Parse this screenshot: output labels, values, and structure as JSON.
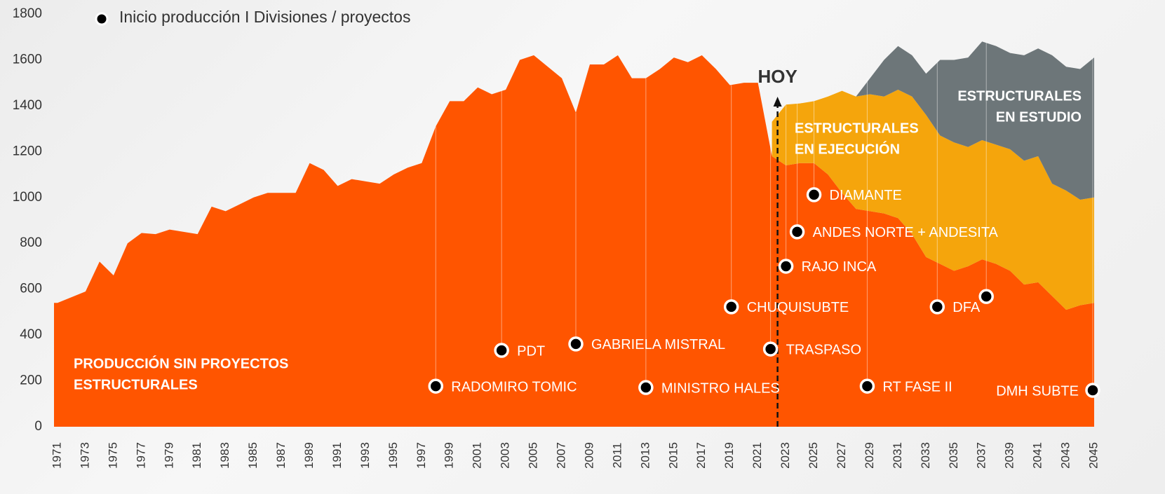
{
  "chart_data": {
    "type": "stacked_area",
    "legend_label": "Inicio producción I Divisiones / proyectos",
    "x": [
      1971,
      1972,
      1973,
      1974,
      1975,
      1976,
      1977,
      1978,
      1979,
      1980,
      1981,
      1982,
      1983,
      1984,
      1985,
      1986,
      1987,
      1988,
      1989,
      1990,
      1991,
      1992,
      1993,
      1994,
      1995,
      1996,
      1997,
      1998,
      1999,
      2000,
      2001,
      2002,
      2003,
      2004,
      2005,
      2006,
      2007,
      2008,
      2009,
      2010,
      2011,
      2012,
      2013,
      2014,
      2015,
      2016,
      2017,
      2018,
      2019,
      2020,
      2021,
      2022,
      2023,
      2024,
      2025,
      2026,
      2027,
      2028,
      2029,
      2030,
      2031,
      2032,
      2033,
      2034,
      2035,
      2036,
      2037,
      2038,
      2039,
      2040,
      2041,
      2042,
      2043,
      2044,
      2045
    ],
    "xticks": [
      1971,
      1973,
      1975,
      1977,
      1979,
      1981,
      1983,
      1985,
      1987,
      1989,
      1991,
      1993,
      1995,
      1997,
      1999,
      2001,
      2003,
      2005,
      2007,
      2009,
      2011,
      2013,
      2015,
      2017,
      2019,
      2021,
      2023,
      2025,
      2027,
      2029,
      2031,
      2033,
      2035,
      2037,
      2039,
      2041,
      2043,
      2045
    ],
    "xlim": [
      1971,
      2045
    ],
    "ylim": [
      0,
      1800
    ],
    "yticks": [
      0,
      200,
      400,
      600,
      800,
      1000,
      1200,
      1400,
      1600,
      1800
    ],
    "series": [
      {
        "label_lines": [
          "PRODUCCIÓN SIN PROYECTOS",
          "ESTRUCTURALES"
        ],
        "color": "#ff5500",
        "values": [
          540,
          565,
          590,
          720,
          660,
          800,
          845,
          840,
          860,
          850,
          840,
          960,
          940,
          970,
          1000,
          1020,
          1020,
          1020,
          1150,
          1120,
          1050,
          1080,
          1070,
          1060,
          1100,
          1130,
          1150,
          1310,
          1420,
          1420,
          1480,
          1450,
          1470,
          1600,
          1620,
          1570,
          1520,
          1370,
          1580,
          1580,
          1620,
          1520,
          1520,
          1560,
          1610,
          1590,
          1620,
          1560,
          1490,
          1500,
          1500,
          1180,
          1140,
          1150,
          1150,
          1100,
          1020,
          950,
          940,
          930,
          910,
          840,
          740,
          710,
          680,
          700,
          730,
          710,
          680,
          620,
          630,
          570,
          510,
          530,
          540
        ]
      },
      {
        "label_lines": [
          "ESTRUCTURALES",
          "EN EJECUCIÓN"
        ],
        "color": "#f5a50c",
        "values": [
          null,
          null,
          null,
          null,
          null,
          null,
          null,
          null,
          null,
          null,
          null,
          null,
          null,
          null,
          null,
          null,
          null,
          null,
          null,
          null,
          null,
          null,
          null,
          null,
          null,
          null,
          null,
          null,
          null,
          null,
          null,
          null,
          null,
          null,
          null,
          null,
          null,
          null,
          null,
          null,
          null,
          null,
          null,
          null,
          null,
          null,
          null,
          null,
          null,
          null,
          null,
          150,
          265,
          260,
          270,
          340,
          445,
          490,
          510,
          510,
          560,
          600,
          620,
          560,
          560,
          520,
          520,
          520,
          530,
          540,
          550,
          490,
          520,
          460,
          460
        ]
      },
      {
        "label_lines": [
          "ESTRUCTURALES",
          "EN ESTUDIO"
        ],
        "color": "#6d7679",
        "values": [
          null,
          null,
          null,
          null,
          null,
          null,
          null,
          null,
          null,
          null,
          null,
          null,
          null,
          null,
          null,
          null,
          null,
          null,
          null,
          null,
          null,
          null,
          null,
          null,
          null,
          null,
          null,
          null,
          null,
          null,
          null,
          null,
          null,
          null,
          null,
          null,
          null,
          null,
          null,
          null,
          null,
          null,
          null,
          null,
          null,
          null,
          null,
          null,
          null,
          null,
          null,
          null,
          null,
          null,
          null,
          null,
          null,
          0,
          70,
          160,
          190,
          180,
          180,
          330,
          360,
          390,
          430,
          430,
          420,
          460,
          470,
          560,
          540,
          570,
          610
        ]
      }
    ],
    "today": {
      "label": "HOY",
      "x": 2022.4
    },
    "markers": [
      {
        "label": "RADOMIRO TOMIC",
        "x": 1998,
        "y": 177
      },
      {
        "label": "PDT",
        "x": 2002.7,
        "y": 333
      },
      {
        "label": "GABRIELA MISTRAL",
        "x": 2008,
        "y": 361
      },
      {
        "label": "MINISTRO HALES",
        "x": 2013,
        "y": 171
      },
      {
        "label": "CHUQUISUBTE",
        "x": 2019.1,
        "y": 523
      },
      {
        "label": "TRASPASO",
        "x": 2021.9,
        "y": 339
      },
      {
        "label": "RAJO INCA",
        "x": 2023,
        "y": 700
      },
      {
        "label": "ANDES NORTE + ANDESITA",
        "x": 2023.8,
        "y": 850
      },
      {
        "label": "DIAMANTE",
        "x": 2025,
        "y": 1012
      },
      {
        "label": "RT FASE II",
        "x": 2028.8,
        "y": 177
      },
      {
        "label": "DFA",
        "x": 2033.8,
        "y": 523
      },
      {
        "x": 2037.3,
        "y": 568
      },
      {
        "label": "DMH SUBTE",
        "x": 2044.9,
        "y": 159
      }
    ]
  }
}
